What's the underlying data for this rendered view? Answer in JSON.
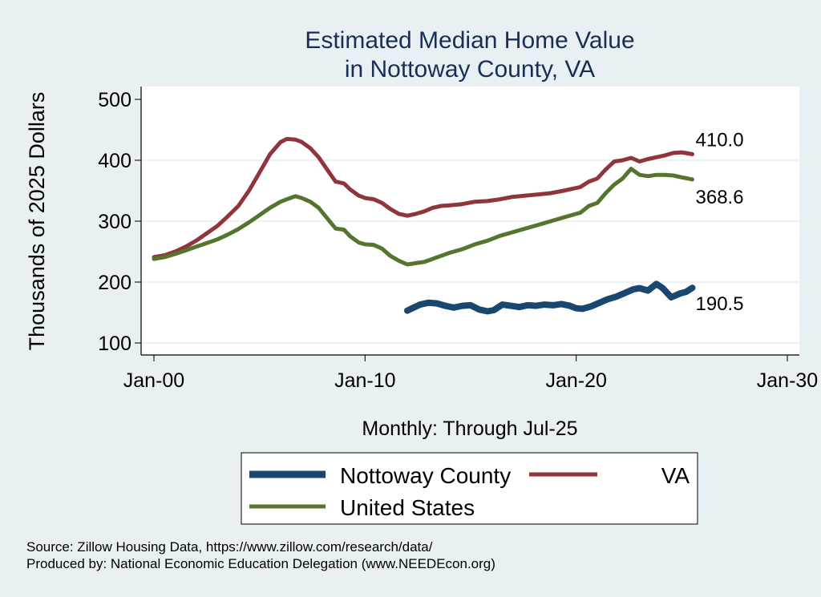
{
  "chart_data": {
    "type": "line",
    "title": [
      "Estimated Median Home Value",
      "in Nottoway County, VA"
    ],
    "xlabel": "Monthly: Through Jul-25",
    "ylabel": "Thousands of 2025 Dollars",
    "ylim": [
      100,
      500
    ],
    "xlim": [
      2000,
      2030
    ],
    "yticks": [
      100,
      200,
      300,
      400,
      500
    ],
    "xticks": [
      {
        "value": 2000,
        "label": "Jan-00"
      },
      {
        "value": 2010,
        "label": "Jan-10"
      },
      {
        "value": 2020,
        "label": "Jan-20"
      },
      {
        "value": 2030,
        "label": "Jan-30"
      }
    ],
    "grid": true,
    "legend_position": "bottom",
    "series": [
      {
        "name": "Nottoway County",
        "color": "#1a476f",
        "end_label": "190.5",
        "x": [
          2012.0,
          2012.3,
          2012.6,
          2013.0,
          2013.4,
          2013.8,
          2014.2,
          2014.6,
          2015.0,
          2015.4,
          2015.8,
          2016.1,
          2016.5,
          2016.9,
          2017.3,
          2017.7,
          2018.1,
          2018.5,
          2018.9,
          2019.3,
          2019.7,
          2020.0,
          2020.3,
          2020.7,
          2021.1,
          2021.5,
          2021.9,
          2022.3,
          2022.7,
          2023.0,
          2023.4,
          2023.8,
          2024.1,
          2024.5,
          2024.9,
          2025.2,
          2025.5
        ],
        "y": [
          153,
          158,
          163,
          166,
          165,
          161,
          158,
          161,
          162,
          155,
          152,
          154,
          163,
          161,
          159,
          162,
          161,
          163,
          162,
          164,
          161,
          157,
          156,
          160,
          166,
          172,
          176,
          182,
          188,
          190,
          186,
          197,
          190,
          175,
          181,
          184,
          190.5
        ]
      },
      {
        "name": "VA",
        "color": "#90353b",
        "end_label": "410.0",
        "x": [
          2000.0,
          2000.5,
          2001.0,
          2001.5,
          2002.0,
          2002.5,
          2003.0,
          2003.5,
          2004.0,
          2004.5,
          2005.0,
          2005.5,
          2006.0,
          2006.3,
          2006.7,
          2007.0,
          2007.4,
          2007.8,
          2008.2,
          2008.6,
          2009.0,
          2009.3,
          2009.7,
          2010.0,
          2010.4,
          2010.8,
          2011.2,
          2011.6,
          2012.0,
          2012.4,
          2012.8,
          2013.2,
          2013.6,
          2014.0,
          2014.6,
          2015.2,
          2015.8,
          2016.4,
          2017.0,
          2017.6,
          2018.2,
          2018.8,
          2019.4,
          2019.8,
          2020.2,
          2020.6,
          2021.0,
          2021.4,
          2021.8,
          2022.2,
          2022.6,
          2023.0,
          2023.4,
          2023.8,
          2024.2,
          2024.6,
          2025.0,
          2025.5
        ],
        "y": [
          241,
          244,
          250,
          258,
          268,
          280,
          292,
          308,
          325,
          350,
          380,
          410,
          430,
          435,
          434,
          430,
          420,
          405,
          385,
          365,
          362,
          352,
          342,
          338,
          336,
          330,
          320,
          312,
          309,
          312,
          316,
          322,
          325,
          326,
          328,
          332,
          333,
          336,
          340,
          342,
          344,
          346,
          350,
          353,
          356,
          365,
          370,
          385,
          398,
          400,
          404,
          398,
          402,
          405,
          408,
          412,
          413,
          410.0
        ]
      },
      {
        "name": "United States",
        "color": "#55752f",
        "end_label": "368.6",
        "x": [
          2000.0,
          2000.5,
          2001.0,
          2001.5,
          2002.0,
          2002.5,
          2003.0,
          2003.5,
          2004.0,
          2004.5,
          2005.0,
          2005.5,
          2006.0,
          2006.3,
          2006.7,
          2007.0,
          2007.4,
          2007.8,
          2008.2,
          2008.6,
          2009.0,
          2009.3,
          2009.7,
          2010.0,
          2010.4,
          2010.8,
          2011.2,
          2011.6,
          2012.0,
          2012.4,
          2012.8,
          2013.2,
          2013.6,
          2014.0,
          2014.6,
          2015.2,
          2015.8,
          2016.4,
          2017.0,
          2017.6,
          2018.2,
          2018.8,
          2019.4,
          2019.8,
          2020.2,
          2020.6,
          2021.0,
          2021.4,
          2021.8,
          2022.2,
          2022.6,
          2023.0,
          2023.4,
          2023.8,
          2024.2,
          2024.6,
          2025.0,
          2025.5
        ],
        "y": [
          238,
          241,
          246,
          252,
          258,
          264,
          270,
          278,
          287,
          298,
          310,
          322,
          332,
          336,
          341,
          338,
          332,
          322,
          305,
          288,
          286,
          275,
          265,
          262,
          261,
          255,
          243,
          235,
          229,
          231,
          233,
          238,
          243,
          248,
          254,
          262,
          268,
          276,
          282,
          288,
          294,
          300,
          306,
          310,
          314,
          325,
          330,
          346,
          360,
          370,
          386,
          376,
          374,
          376,
          376,
          375,
          372,
          368.6
        ]
      }
    ]
  },
  "notes": [
    "Source: Zillow Housing Data, https://www.zillow.com/research/data/",
    "Produced by: National Economic Education Delegation (www.NEEDEcon.org)"
  ]
}
